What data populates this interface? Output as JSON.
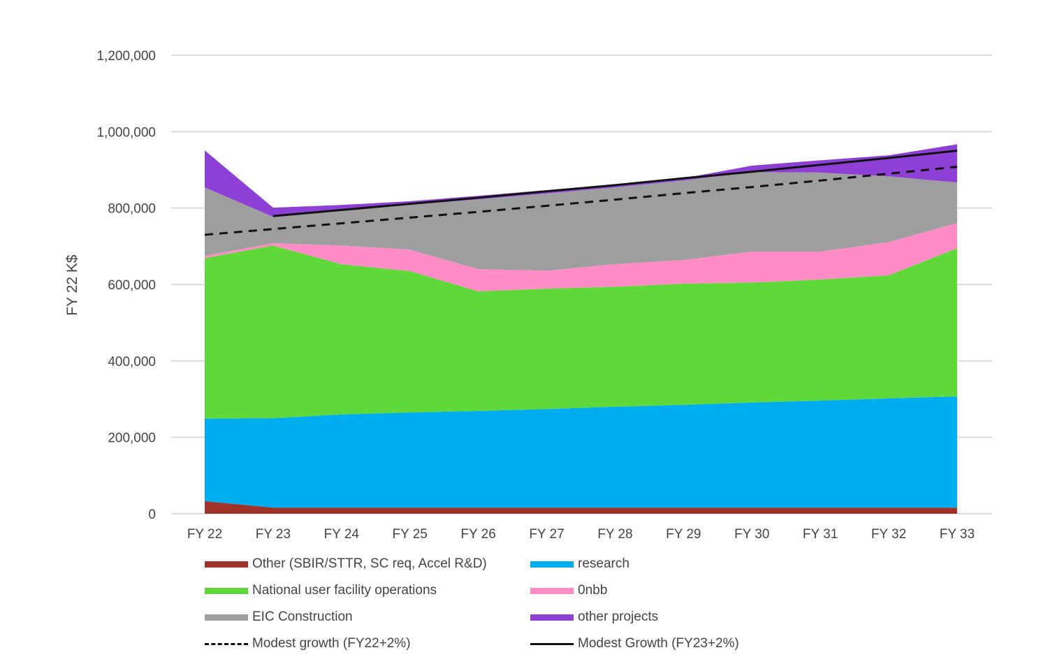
{
  "chart_data": {
    "type": "area",
    "stacked": true,
    "title": "",
    "xlabel": "",
    "ylabel": "FY 22 K$",
    "ylim": [
      0,
      1200000
    ],
    "yticks": [
      0,
      200000,
      400000,
      600000,
      800000,
      1000000,
      1200000
    ],
    "ytick_labels": [
      "0",
      "200,000",
      "400,000",
      "600,000",
      "800,000",
      "1,000,000",
      "1,200,000"
    ],
    "grid": true,
    "legend_position": "bottom",
    "categories": [
      "FY 22",
      "FY 23",
      "FY 24",
      "FY 25",
      "FY 26",
      "FY 27",
      "FY 28",
      "FY 29",
      "FY 30",
      "FY 31",
      "FY 32",
      "FY 33"
    ],
    "series": [
      {
        "name": "Other (SBIR/STTR, SC req, Accel R&D)",
        "color": "#a0342a",
        "values": [
          33000,
          16000,
          16000,
          16000,
          16000,
          16000,
          16000,
          16000,
          16000,
          16000,
          16000,
          16000
        ]
      },
      {
        "name": "research",
        "color": "#00aeef",
        "values": [
          216000,
          234000,
          244000,
          249000,
          253000,
          258000,
          264000,
          269000,
          275000,
          280000,
          286000,
          291000
        ]
      },
      {
        "name": "National user facility operations",
        "color": "#5fd83a",
        "values": [
          420000,
          452000,
          393000,
          370000,
          313000,
          315000,
          314000,
          317000,
          314000,
          317000,
          322000,
          388000
        ]
      },
      {
        "name": "0nbb",
        "color": "#ff8cc6",
        "values": [
          6000,
          6000,
          49000,
          56000,
          58000,
          47000,
          59000,
          62000,
          81000,
          73000,
          87000,
          66000
        ]
      },
      {
        "name": "EIC Construction",
        "color": "#9e9e9e",
        "values": [
          179000,
          69000,
          94000,
          117000,
          183000,
          202000,
          201000,
          208000,
          208000,
          207000,
          172000,
          106000
        ]
      },
      {
        "name": "other projects",
        "color": "#8e3fd6",
        "values": [
          97000,
          24000,
          12000,
          10000,
          9000,
          9000,
          7000,
          6000,
          17000,
          32000,
          55000,
          100000
        ]
      }
    ],
    "lines": [
      {
        "name": "Modest growth (FY22+2%)",
        "style": "dashed",
        "color": "#111111",
        "values": [
          730000,
          745000,
          760000,
          775000,
          790000,
          806000,
          822000,
          839000,
          855000,
          872000,
          890000,
          908000
        ]
      },
      {
        "name": "Modest Growth (FY23+2%)",
        "style": "solid",
        "color": "#111111",
        "values": [
          null,
          779000,
          795000,
          811000,
          827000,
          844000,
          860000,
          878000,
          895000,
          913000,
          931000,
          950000
        ]
      }
    ]
  }
}
